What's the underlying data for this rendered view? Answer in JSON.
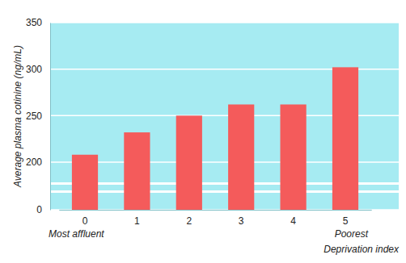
{
  "chart_data": {
    "type": "bar",
    "x_label": "Deprivation index",
    "y_label": "Average plasma cotinine (ng/mL)",
    "categories": [
      "0",
      "1",
      "2",
      "3",
      "4",
      "5"
    ],
    "values": [
      208,
      232,
      250,
      262,
      262,
      302
    ],
    "color": "#f45b5b",
    "ylim": [
      0,
      350
    ],
    "yticks": [
      0,
      200,
      250,
      300,
      350
    ],
    "grid": true,
    "annotations": [
      {
        "text": "Most affluent",
        "x": "0"
      },
      {
        "text": "Poorest",
        "x": "5"
      }
    ]
  }
}
